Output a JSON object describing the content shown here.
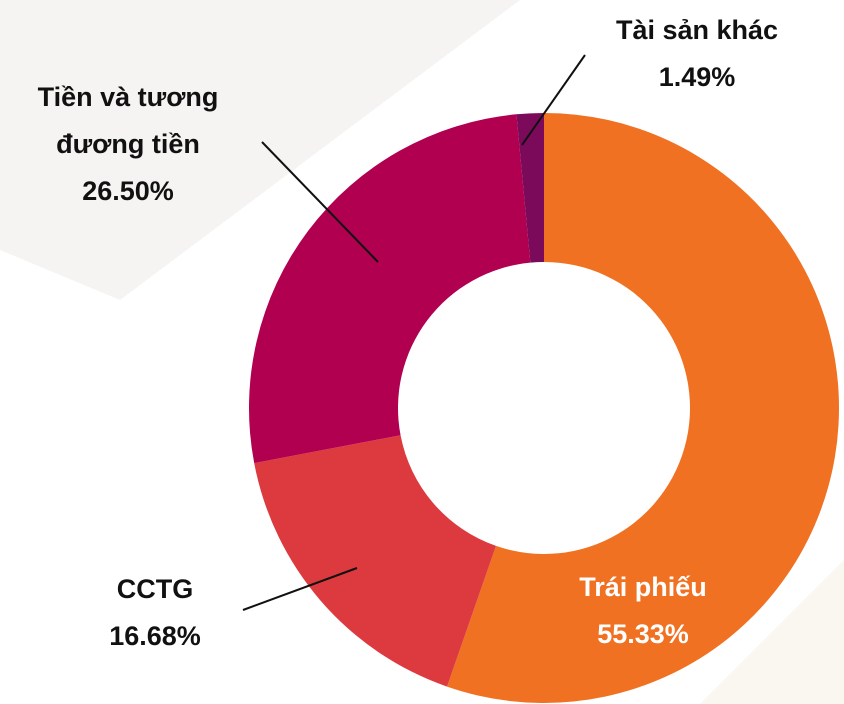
{
  "chart_data": {
    "type": "donut",
    "categories": [
      "Trái phiếu",
      "CCTG",
      "Tiền và tương đương tiền",
      "Tài sản khác"
    ],
    "values": [
      55.33,
      16.68,
      26.5,
      1.49
    ],
    "value_labels": [
      "55.33%",
      "16.68%",
      "26.50%",
      "1.49%"
    ],
    "colors": [
      "#f07122",
      "#dc3a3f",
      "#b0004f",
      "#7b0a5a"
    ]
  }
}
